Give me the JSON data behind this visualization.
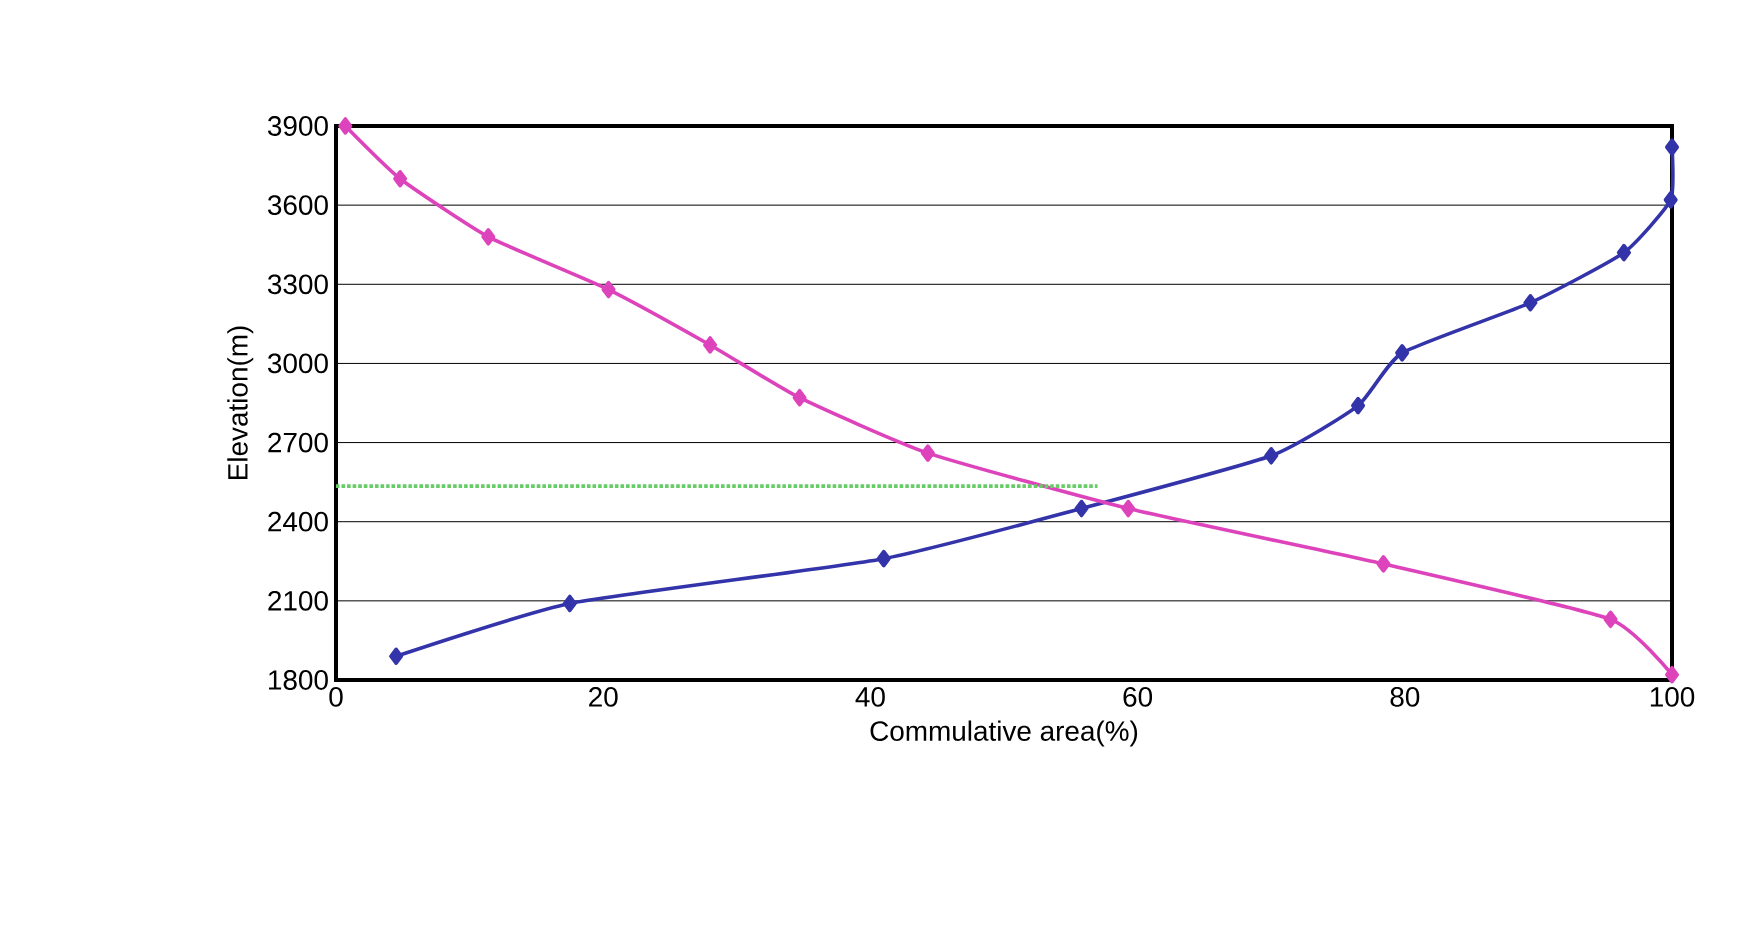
{
  "chart_data": {
    "type": "line",
    "xlabel": "Commulative area(%)",
    "ylabel": "Elevation(m)",
    "xlim": [
      0,
      100
    ],
    "xticks": [
      0,
      20,
      40,
      60,
      80,
      100
    ],
    "ylim": [
      1800,
      3900
    ],
    "yticks": [
      1800,
      2100,
      2400,
      2700,
      3000,
      3300,
      3600,
      3900
    ],
    "grid": "y",
    "marker": "diamond",
    "line_style": "solid",
    "series": [
      {
        "color": "#3333aa",
        "x": [
          4.5,
          17.5,
          41,
          55.8,
          70,
          76.5,
          79.8,
          89.4,
          96.4,
          99.9,
          100
        ],
        "values": [
          1890,
          2090,
          2260,
          2450,
          2650,
          2840,
          3040,
          3230,
          3420,
          3620,
          3820
        ]
      },
      {
        "color": "#dd44bb",
        "x": [
          0.7,
          4.8,
          11.4,
          20.4,
          28,
          34.7,
          44.3,
          59.3,
          78.4,
          95.4,
          100
        ],
        "values": [
          3900,
          3700,
          3480,
          3280,
          3070,
          2870,
          2660,
          2450,
          2240,
          2030,
          1820
        ]
      },
      {
        "color": "#66cc66",
        "marker": "none",
        "line_style": "dotted",
        "x": [
          0,
          57
        ],
        "values": [
          2535,
          2535
        ]
      }
    ]
  }
}
